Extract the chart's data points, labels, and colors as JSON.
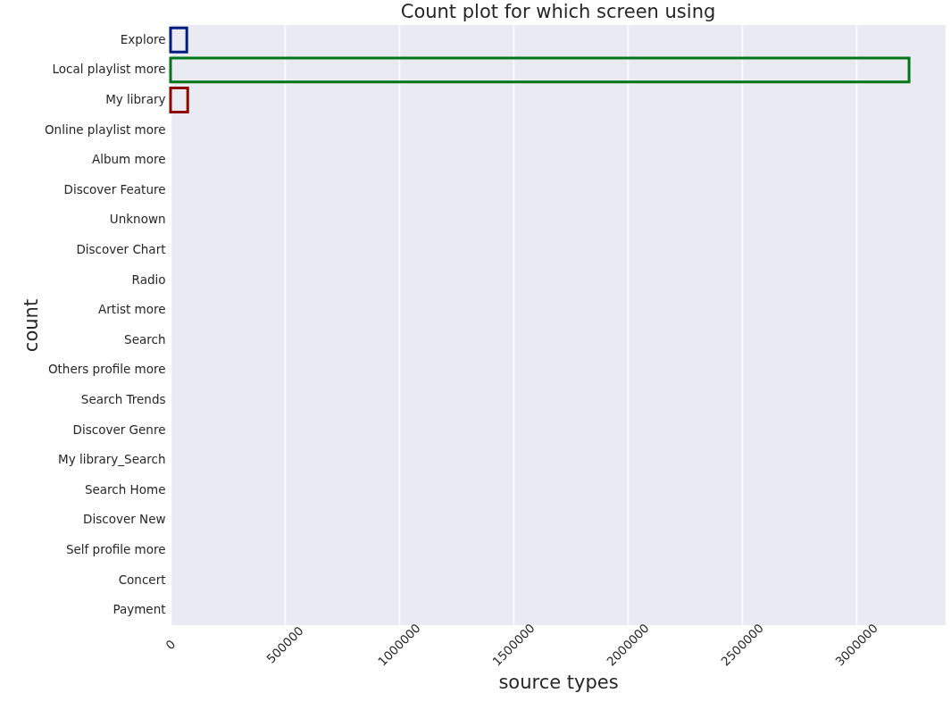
{
  "chart_data": {
    "type": "bar",
    "orientation": "horizontal",
    "title": "Count plot for which  screen using",
    "xlabel": "source types",
    "ylabel": "count",
    "categories": [
      "Explore",
      "Local playlist more",
      "My library",
      "Online playlist more",
      "Album more",
      "Discover Feature",
      "Unknown",
      "Discover Chart",
      "Radio",
      "Artist more",
      "Search",
      "Others profile more",
      "Search Trends",
      "Discover Genre",
      "My library_Search",
      "Search Home",
      "Discover New",
      "Self profile more",
      "Concert",
      "Payment"
    ],
    "values": [
      71000,
      3230000,
      75000,
      null,
      null,
      null,
      null,
      null,
      null,
      null,
      null,
      null,
      null,
      null,
      null,
      null,
      null,
      null,
      null,
      null
    ],
    "colors": [
      "#001c7f",
      "#017517",
      "#8c0800",
      null,
      null,
      null,
      null,
      null,
      null,
      null,
      null,
      null,
      null,
      null,
      null,
      null,
      null,
      null,
      null,
      null
    ],
    "xlim": [
      0,
      3390000
    ],
    "xticks": [
      0,
      500000,
      1000000,
      1500000,
      2000000,
      2500000,
      3000000
    ],
    "grid": "x"
  }
}
